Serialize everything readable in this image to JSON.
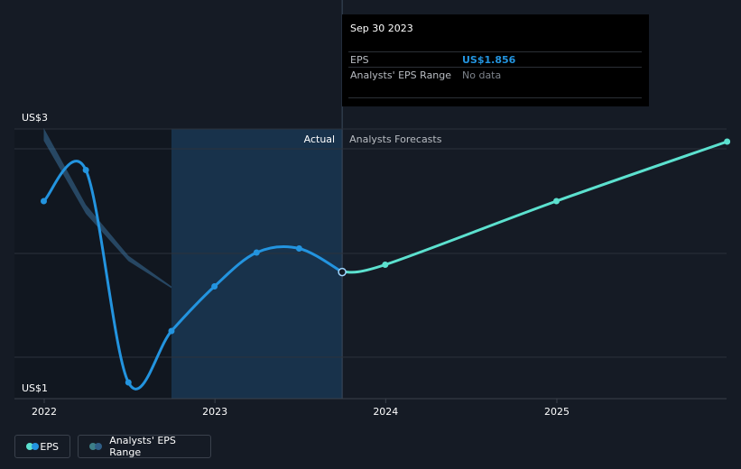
{
  "colors": {
    "background": "#151b25",
    "actual_line": "#2394df",
    "forecast_line": "#5ce1cf",
    "actual_shade": "#18324b",
    "grid": "#2b313b",
    "range_band": "#3a6f9a",
    "eps_value": "#2394df"
  },
  "tooltip": {
    "date": "Sep 30 2023",
    "eps_label": "EPS",
    "eps_value": "US$1.856",
    "range_label": "Analysts' EPS Range",
    "range_value": "No data"
  },
  "chart_labels": {
    "actual": "Actual",
    "forecasts": "Analysts Forecasts"
  },
  "legend": {
    "eps": "EPS",
    "range": "Analysts' EPS Range"
  },
  "chart_data": {
    "type": "line",
    "y_tick_labels": [
      "US$1",
      "US$3"
    ],
    "ylim": [
      1,
      3
    ],
    "x_tick_labels": [
      "2022",
      "2023",
      "2024",
      "2025"
    ],
    "xlim": [
      "2021-12-01",
      "2025-12-31"
    ],
    "divider_date": "2023-09-30",
    "history_start": "2022-09-30",
    "series": [
      {
        "name": "EPS",
        "kind": "actual",
        "points": [
          {
            "x": "2021-12-31",
            "y": 2.38
          },
          {
            "x": "2022-03-31",
            "y": 2.61
          },
          {
            "x": "2022-06-30",
            "y": 1.04
          },
          {
            "x": "2022-09-30",
            "y": 1.42
          },
          {
            "x": "2022-12-31",
            "y": 1.75
          },
          {
            "x": "2023-03-31",
            "y": 2.0
          },
          {
            "x": "2023-06-30",
            "y": 2.03
          },
          {
            "x": "2023-09-30",
            "y": 1.856
          }
        ]
      },
      {
        "name": "EPS Forecast",
        "kind": "forecast",
        "points": [
          {
            "x": "2023-09-30",
            "y": 1.856
          },
          {
            "x": "2023-12-31",
            "y": 1.91
          },
          {
            "x": "2024-12-31",
            "y": 2.38
          },
          {
            "x": "2025-12-31",
            "y": 2.82
          }
        ]
      }
    ],
    "range_band": [
      {
        "x": "2021-12-31",
        "y": 2.84
      },
      {
        "x": "2022-03-31",
        "y": 2.3
      },
      {
        "x": "2022-06-30",
        "y": 1.95
      },
      {
        "x": "2022-09-30",
        "y": 1.75
      }
    ],
    "grid": true,
    "legend_position": "bottom-left"
  }
}
